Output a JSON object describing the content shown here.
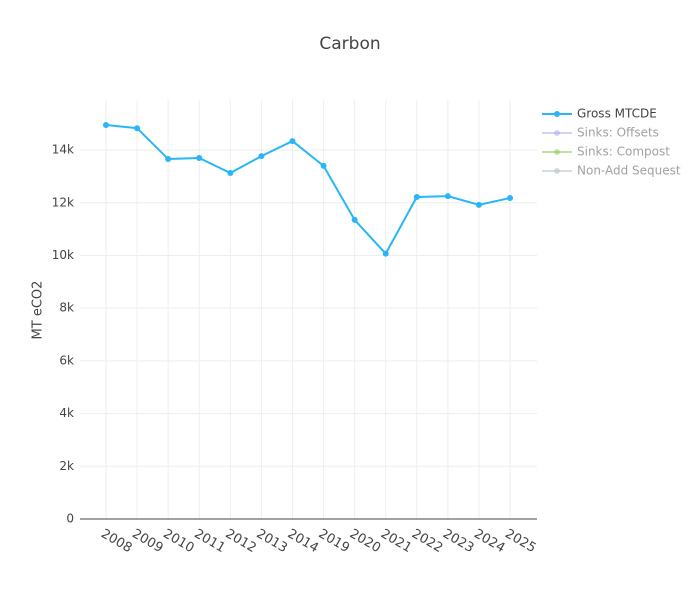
{
  "chart_data": {
    "type": "line",
    "title": "Carbon",
    "y_label": "MT eCO2",
    "categories": [
      "2008",
      "2009",
      "2010",
      "2011",
      "2012",
      "2013",
      "2014",
      "2019",
      "2020",
      "2021",
      "2022",
      "2023",
      "2024",
      "2025"
    ],
    "series": [
      {
        "name": "Gross MTCDE",
        "color": "#29b6f6",
        "visible": true,
        "values": [
          14950,
          14830,
          13660,
          13700,
          13130,
          13770,
          14340,
          13400,
          11350,
          10070,
          12220,
          12250,
          11920,
          12180
        ]
      },
      {
        "name": "Sinks: Offsets",
        "color": "#9fa8f5",
        "visible": "legendonly",
        "values": [
          null,
          null,
          null,
          null,
          null,
          null,
          null,
          null,
          null,
          null,
          null,
          null,
          null,
          null
        ]
      },
      {
        "name": "Sinks: Compost",
        "color": "#8bc34a",
        "visible": "legendonly",
        "values": [
          null,
          null,
          null,
          null,
          null,
          null,
          null,
          null,
          null,
          null,
          null,
          null,
          null,
          null
        ]
      },
      {
        "name": "Non-Add Sequest",
        "color": "#b0bec5",
        "visible": "legendonly",
        "values": [
          null,
          null,
          null,
          null,
          null,
          null,
          null,
          null,
          null,
          null,
          null,
          null,
          null,
          null
        ]
      }
    ],
    "ylim": [
      0,
      15900
    ],
    "yticks": [
      0,
      {
        "value": 2000,
        "label": "2k"
      },
      {
        "value": 4000,
        "label": "4k"
      },
      {
        "value": 6000,
        "label": "6k"
      },
      {
        "value": 8000,
        "label": "8k"
      },
      {
        "value": 10000,
        "label": "10k"
      },
      {
        "value": 12000,
        "label": "12k"
      },
      {
        "value": 14000,
        "label": "14k"
      }
    ],
    "grid": true
  }
}
